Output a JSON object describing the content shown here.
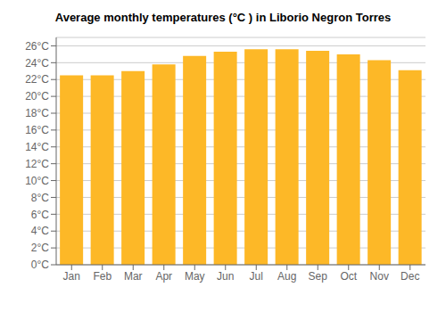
{
  "chart_data": {
    "type": "bar",
    "title": "Average monthly temperatures (°C ) in Liborio Negron Torres",
    "categories": [
      "Jan",
      "Feb",
      "Mar",
      "Apr",
      "May",
      "Jun",
      "Jul",
      "Aug",
      "Sep",
      "Oct",
      "Nov",
      "Dec"
    ],
    "values": [
      22.5,
      22.5,
      23.0,
      23.8,
      24.8,
      25.3,
      25.6,
      25.6,
      25.4,
      25.0,
      24.3,
      23.1
    ],
    "color": "#FDB827",
    "ylim": [
      0,
      27
    ],
    "yticks": [
      {
        "value": 0,
        "label": "0°C"
      },
      {
        "value": 2,
        "label": "2°C"
      },
      {
        "value": 4,
        "label": "4°C"
      },
      {
        "value": 6,
        "label": "6°C"
      },
      {
        "value": 8,
        "label": "8°C"
      },
      {
        "value": 10,
        "label": "10°C"
      },
      {
        "value": 12,
        "label": "12°C"
      },
      {
        "value": 14,
        "label": "14°C"
      },
      {
        "value": 16,
        "label": "16°C"
      },
      {
        "value": 18,
        "label": "18°C"
      },
      {
        "value": 20,
        "label": "20°C"
      },
      {
        "value": 22,
        "label": "22°C"
      },
      {
        "value": 24,
        "label": "24°C"
      },
      {
        "value": 26,
        "label": "26°C"
      }
    ],
    "grid": true
  }
}
